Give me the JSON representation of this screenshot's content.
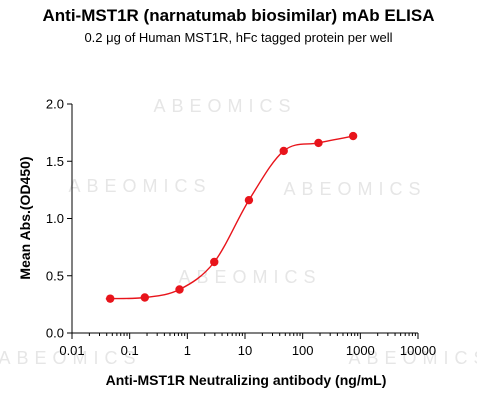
{
  "chart_data": {
    "type": "scatter",
    "title": "Anti-MST1R (narnatumab biosimilar) mAb ELISA",
    "subtitle": "0.2 μg of Human MST1R, hFc tagged protein per well",
    "xlabel": "Anti-MST1R Neutralizing antibody (ng/mL)",
    "ylabel": "Mean Abs.(OD450)",
    "x_scale": "log",
    "xlim": [
      0.01,
      10000
    ],
    "ylim": [
      0.0,
      2.0
    ],
    "x_ticks": [
      "0.01",
      "0.1",
      "1",
      "10",
      "100",
      "1000",
      "10000"
    ],
    "y_ticks": [
      "0.0",
      "0.5",
      "1.0",
      "1.5",
      "2.0"
    ],
    "grid": false,
    "series": [
      {
        "color": "#e8141b",
        "fit": "four-parameter logistic",
        "x": [
          0.046,
          0.183,
          0.732,
          2.93,
          11.7,
          46.9,
          188,
          750
        ],
        "y": [
          0.3,
          0.31,
          0.38,
          0.62,
          1.16,
          1.59,
          1.66,
          1.72
        ]
      }
    ],
    "watermark": "ABEOMICS"
  }
}
